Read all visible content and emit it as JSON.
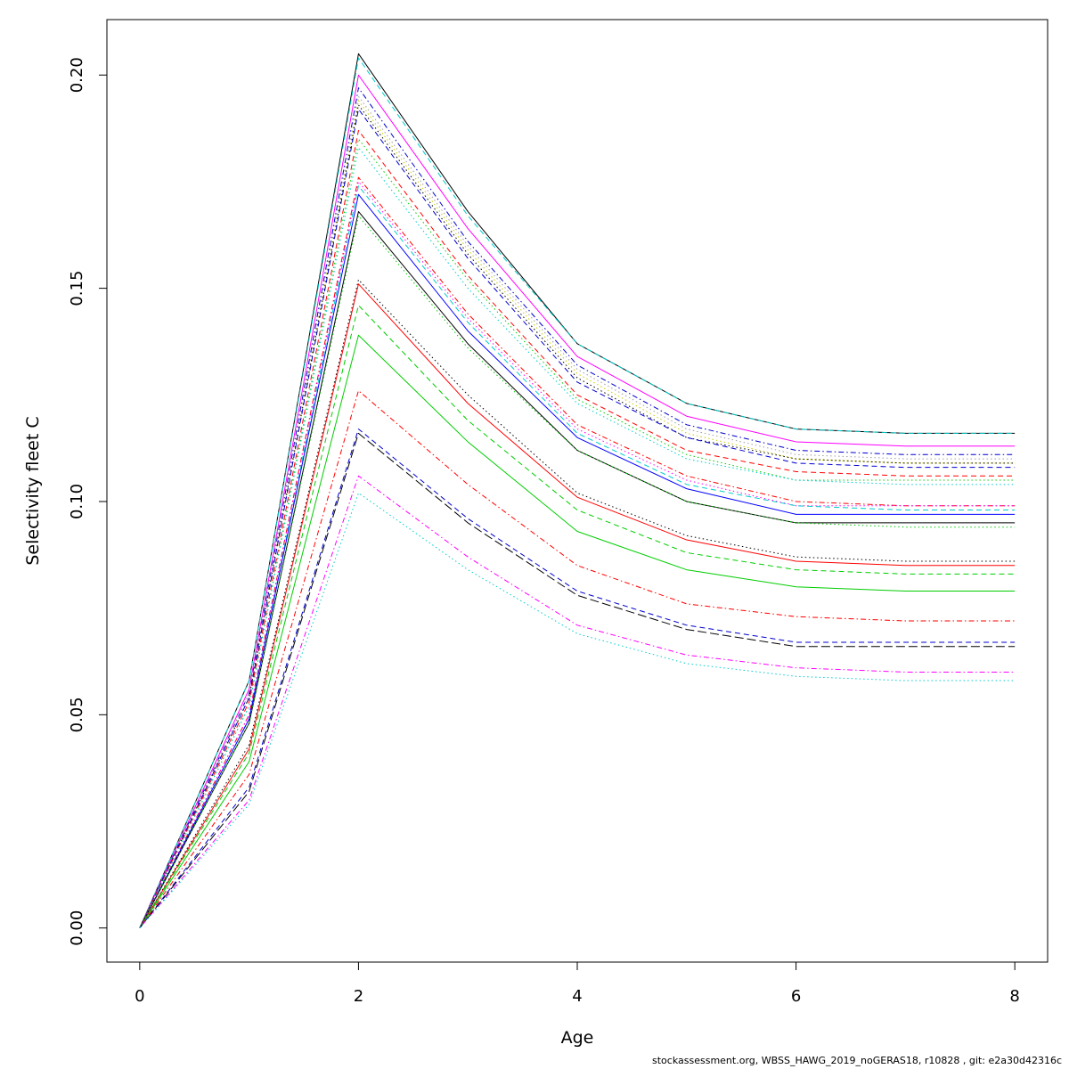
{
  "footer_text": "stockassessment.org, WBSS_HAWG_2019_noGERAS18, r10828 , git: e2a30d42316c",
  "chart_data": {
    "type": "line",
    "title": "",
    "xlabel": "Age",
    "ylabel": "Selectivity fleet C",
    "xlim": [
      -0.3,
      8.3
    ],
    "ylim": [
      -0.008,
      0.213
    ],
    "grid": false,
    "legend": "none",
    "x_ticks": [
      0,
      2,
      4,
      6,
      8
    ],
    "x_tick_labels": [
      "0",
      "2",
      "4",
      "6",
      "8"
    ],
    "y_ticks": [
      0.0,
      0.05,
      0.1,
      0.15,
      0.2
    ],
    "y_tick_labels": [
      "0.00",
      "0.05",
      "0.10",
      "0.15",
      "0.20"
    ],
    "x": [
      0,
      1,
      2,
      3,
      4,
      5,
      6,
      7,
      8
    ],
    "series": [
      {
        "color": "#000000",
        "dash": "solid",
        "values": [
          0,
          0.058,
          0.205,
          0.168,
          0.137,
          0.123,
          0.117,
          0.116,
          0.116
        ]
      },
      {
        "color": "#00cdcd",
        "dash": "dashed",
        "values": [
          0,
          0.058,
          0.204,
          0.167,
          0.137,
          0.123,
          0.117,
          0.116,
          0.116
        ]
      },
      {
        "color": "#ff00ff",
        "dash": "solid",
        "values": [
          0,
          0.056,
          0.2,
          0.164,
          0.134,
          0.12,
          0.114,
          0.113,
          0.113
        ]
      },
      {
        "color": "#0000cd",
        "dash": "dashdot",
        "values": [
          0,
          0.055,
          0.197,
          0.161,
          0.132,
          0.118,
          0.112,
          0.111,
          0.111
        ]
      },
      {
        "color": "#9e9e9e",
        "dash": "dotted",
        "values": [
          0,
          0.055,
          0.195,
          0.16,
          0.131,
          0.117,
          0.111,
          0.11,
          0.11
        ]
      },
      {
        "color": "#cdcd00",
        "dash": "dotted",
        "values": [
          0,
          0.054,
          0.194,
          0.159,
          0.13,
          0.116,
          0.11,
          0.109,
          0.109
        ]
      },
      {
        "color": "#000000",
        "dash": "dotted",
        "values": [
          0,
          0.054,
          0.193,
          0.158,
          0.129,
          0.115,
          0.11,
          0.109,
          0.109
        ]
      },
      {
        "color": "#0000cd",
        "dash": "dashed",
        "values": [
          0,
          0.054,
          0.192,
          0.157,
          0.128,
          0.115,
          0.109,
          0.108,
          0.108
        ]
      },
      {
        "color": "#ff0000",
        "dash": "dashed",
        "values": [
          0,
          0.053,
          0.187,
          0.153,
          0.125,
          0.112,
          0.107,
          0.106,
          0.106
        ]
      },
      {
        "color": "#00cd00",
        "dash": "dotted",
        "values": [
          0,
          0.052,
          0.185,
          0.152,
          0.124,
          0.111,
          0.105,
          0.105,
          0.105
        ]
      },
      {
        "color": "#00cdcd",
        "dash": "dotted",
        "values": [
          0,
          0.052,
          0.183,
          0.15,
          0.123,
          0.11,
          0.105,
          0.104,
          0.104
        ]
      },
      {
        "color": "#ff0000",
        "dash": "dashdot",
        "values": [
          0,
          0.05,
          0.176,
          0.144,
          0.118,
          0.106,
          0.1,
          0.099,
          0.099
        ]
      },
      {
        "color": "#ff00ff",
        "dash": "dotted",
        "values": [
          0,
          0.05,
          0.175,
          0.143,
          0.117,
          0.105,
          0.099,
          0.099,
          0.099
        ]
      },
      {
        "color": "#00cdcd",
        "dash": "dashed",
        "values": [
          0,
          0.049,
          0.174,
          0.142,
          0.116,
          0.104,
          0.099,
          0.098,
          0.098
        ]
      },
      {
        "color": "#0000ff",
        "dash": "solid",
        "values": [
          0,
          0.049,
          0.172,
          0.14,
          0.115,
          0.103,
          0.097,
          0.097,
          0.097
        ]
      },
      {
        "color": "#000000",
        "dash": "solid",
        "values": [
          0,
          0.048,
          0.168,
          0.137,
          0.112,
          0.1,
          0.095,
          0.095,
          0.095
        ]
      },
      {
        "color": "#00cd00",
        "dash": "dotted",
        "values": [
          0,
          0.048,
          0.167,
          0.136,
          0.112,
          0.1,
          0.095,
          0.094,
          0.094
        ]
      },
      {
        "color": "#000000",
        "dash": "dotted",
        "values": [
          0,
          0.043,
          0.152,
          0.125,
          0.102,
          0.092,
          0.087,
          0.086,
          0.086
        ]
      },
      {
        "color": "#ff0000",
        "dash": "solid",
        "values": [
          0,
          0.042,
          0.151,
          0.123,
          0.101,
          0.091,
          0.086,
          0.085,
          0.085
        ]
      },
      {
        "color": "#00cd00",
        "dash": "dashed",
        "values": [
          0,
          0.041,
          0.146,
          0.119,
          0.098,
          0.088,
          0.084,
          0.083,
          0.083
        ]
      },
      {
        "color": "#00cd00",
        "dash": "solid",
        "values": [
          0,
          0.039,
          0.139,
          0.114,
          0.093,
          0.084,
          0.08,
          0.079,
          0.079
        ]
      },
      {
        "color": "#ff0000",
        "dash": "dashdot",
        "values": [
          0,
          0.036,
          0.126,
          0.104,
          0.085,
          0.076,
          0.073,
          0.072,
          0.072
        ]
      },
      {
        "color": "#0000cd",
        "dash": "dashed",
        "values": [
          0,
          0.033,
          0.117,
          0.096,
          0.079,
          0.071,
          0.067,
          0.067,
          0.067
        ]
      },
      {
        "color": "#000000",
        "dash": "longdash",
        "values": [
          0,
          0.032,
          0.116,
          0.095,
          0.078,
          0.07,
          0.066,
          0.066,
          0.066
        ]
      },
      {
        "color": "#ff00ff",
        "dash": "dashdot",
        "values": [
          0,
          0.03,
          0.106,
          0.087,
          0.071,
          0.064,
          0.061,
          0.06,
          0.06
        ]
      },
      {
        "color": "#00cdcd",
        "dash": "dotted",
        "values": [
          0,
          0.029,
          0.102,
          0.084,
          0.069,
          0.062,
          0.059,
          0.058,
          0.058
        ]
      }
    ]
  }
}
